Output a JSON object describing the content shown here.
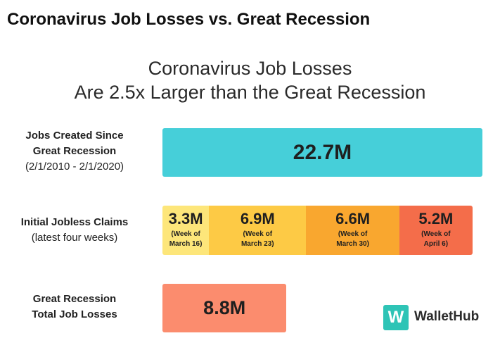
{
  "header": {
    "title": "Coronavirus Job Losses vs. Great Recession"
  },
  "chart_data": {
    "type": "bar",
    "title_line1": "Coronavirus Job Losses",
    "title_line2": "Are 2.5x Larger than the Great Recession",
    "unit": "M",
    "rows": [
      {
        "label_bold": [
          "Jobs Created Since",
          "Great Recession"
        ],
        "label_note": "(2/1/2010 - 2/1/2020)",
        "segments": [
          {
            "value": 22.7,
            "display": "22.7M",
            "note": [],
            "color": "#46cfd9"
          }
        ]
      },
      {
        "label_bold": [
          "Initial Jobless Claims"
        ],
        "label_note": "(latest four weeks)",
        "segments": [
          {
            "value": 3.3,
            "display": "3.3M",
            "note": [
              "(Week of",
              "March 16)"
            ],
            "color": "#fde67a"
          },
          {
            "value": 6.9,
            "display": "6.9M",
            "note": [
              "(Week of",
              "March 23)"
            ],
            "color": "#fdca45"
          },
          {
            "value": 6.6,
            "display": "6.6M",
            "note": [
              "(Week of",
              "March 30)"
            ],
            "color": "#f9a72f"
          },
          {
            "value": 5.2,
            "display": "5.2M",
            "note": [
              "(Week of",
              "April 6)"
            ],
            "color": "#f46d4a"
          }
        ]
      },
      {
        "label_bold": [
          "Great Recession",
          "Total Job Losses"
        ],
        "label_note": "",
        "segments": [
          {
            "value": 8.8,
            "display": "8.8M",
            "note": [],
            "color": "#fb8c6e"
          }
        ]
      }
    ]
  },
  "logo": {
    "mark": "W",
    "name": "WalletHub"
  }
}
